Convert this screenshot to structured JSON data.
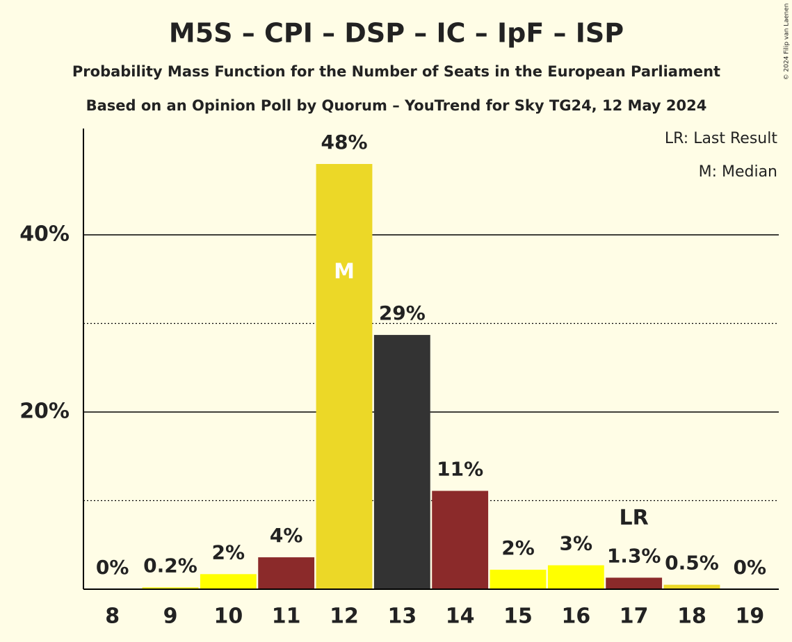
{
  "chart_data": {
    "type": "bar",
    "title": "M5S – CPI – DSP – IC – IpF – ISP",
    "subtitle": "Probability Mass Function for the Number of Seats in the European Parliament",
    "subtitle2": "Based on an Opinion Poll by Quorum – YouTrend for Sky TG24, 12 May 2024",
    "categories": [
      "8",
      "9",
      "10",
      "11",
      "12",
      "13",
      "14",
      "15",
      "16",
      "17",
      "18",
      "19"
    ],
    "values": [
      0,
      0.2,
      1.7,
      3.6,
      48,
      28.7,
      11.1,
      2.2,
      2.7,
      1.3,
      0.5,
      0
    ],
    "value_labels": [
      "0%",
      "0.2%",
      "2%",
      "4%",
      "48%",
      "29%",
      "11%",
      "2%",
      "3%",
      "1.3%",
      "0.5%",
      "0%"
    ],
    "colors": [
      "#ecd827",
      "#ffff00",
      "#ffff00",
      "#8b2a2a",
      "#ecd827",
      "#333333",
      "#8b2a2a",
      "#ffff00",
      "#ffff00",
      "#8b2a2a",
      "#ecd827",
      "#ecd827"
    ],
    "ylim": [
      0,
      52
    ],
    "yticks": [
      {
        "value": 20,
        "label": "20%"
      },
      {
        "value": 40,
        "label": "40%"
      }
    ],
    "minor_gridlines": [
      10,
      30
    ],
    "grid": true,
    "annotations": [
      {
        "text": "M",
        "category": "12"
      },
      {
        "text": "LR",
        "category": "17"
      }
    ],
    "legend_notes": [
      "LR: Last Result",
      "M: Median"
    ],
    "credit": "© 2024 Filip van Laenen"
  }
}
